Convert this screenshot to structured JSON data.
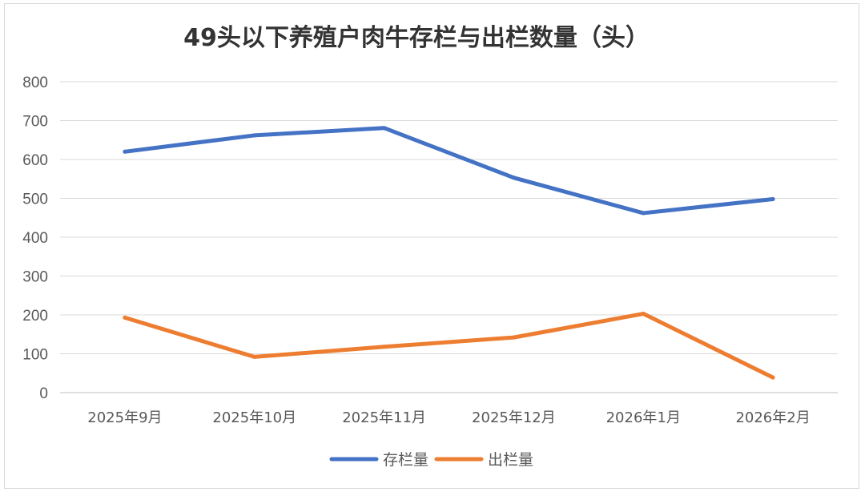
{
  "chart_data": {
    "type": "line",
    "title": "49头以下养殖户肉牛存栏与出栏数量（头）",
    "xlabel": "",
    "ylabel": "",
    "categories": [
      "2025年9月",
      "2025年10月",
      "2025年11月",
      "2025年12月",
      "2026年1月",
      "2026年2月"
    ],
    "ylim": [
      0,
      800
    ],
    "yticks": [
      0,
      100,
      200,
      300,
      400,
      500,
      600,
      700,
      800
    ],
    "grid": true,
    "legend_position": "bottom",
    "series": [
      {
        "name": "存栏量",
        "color": "#4472C4",
        "values": [
          620,
          662,
          681,
          553,
          462,
          498
        ]
      },
      {
        "name": "出栏量",
        "color": "#ED7D31",
        "values": [
          193,
          92,
          118,
          142,
          203,
          39
        ]
      }
    ]
  }
}
